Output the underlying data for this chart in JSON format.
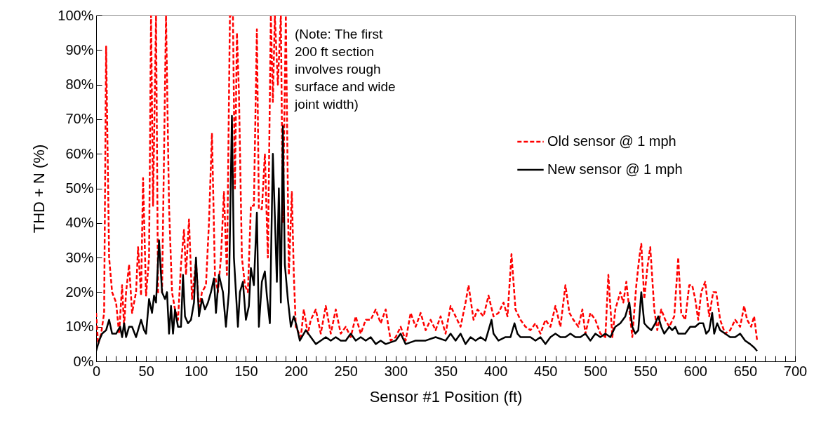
{
  "chart_data": {
    "type": "line",
    "xlabel": "Sensor #1 Position (ft)",
    "ylabel": "THD + N (%)",
    "xlim": [
      0,
      700
    ],
    "ylim": [
      0,
      100
    ],
    "xticks": [
      0,
      {
        "value": 10,
        "label": null
      },
      {
        "value": 20,
        "label": null
      },
      {
        "value": 30,
        "label": null
      },
      {
        "value": 40,
        "label": null
      },
      50,
      {
        "value": 60,
        "label": null
      },
      {
        "value": 70,
        "label": null
      },
      {
        "value": 80,
        "label": null
      },
      {
        "value": 90,
        "label": null
      },
      100,
      {
        "value": 110,
        "label": null
      },
      {
        "value": 120,
        "label": null
      },
      {
        "value": 130,
        "label": null
      },
      {
        "value": 140,
        "label": null
      },
      150,
      {
        "value": 160,
        "label": null
      },
      {
        "value": 170,
        "label": null
      },
      {
        "value": 180,
        "label": null
      },
      {
        "value": 190,
        "label": null
      },
      200,
      {
        "value": 210,
        "label": null
      },
      {
        "value": 220,
        "label": null
      },
      {
        "value": 230,
        "label": null
      },
      {
        "value": 240,
        "label": null
      },
      250,
      {
        "value": 260,
        "label": null
      },
      {
        "value": 270,
        "label": null
      },
      {
        "value": 280,
        "label": null
      },
      {
        "value": 290,
        "label": null
      },
      300,
      {
        "value": 310,
        "label": null
      },
      {
        "value": 320,
        "label": null
      },
      {
        "value": 330,
        "label": null
      },
      {
        "value": 340,
        "label": null
      },
      350,
      {
        "value": 360,
        "label": null
      },
      {
        "value": 370,
        "label": null
      },
      {
        "value": 380,
        "label": null
      },
      {
        "value": 390,
        "label": null
      },
      400,
      {
        "value": 410,
        "label": null
      },
      {
        "value": 420,
        "label": null
      },
      {
        "value": 430,
        "label": null
      },
      {
        "value": 440,
        "label": null
      },
      450,
      {
        "value": 460,
        "label": null
      },
      {
        "value": 470,
        "label": null
      },
      {
        "value": 480,
        "label": null
      },
      {
        "value": 490,
        "label": null
      },
      500,
      {
        "value": 510,
        "label": null
      },
      {
        "value": 520,
        "label": null
      },
      {
        "value": 530,
        "label": null
      },
      {
        "value": 540,
        "label": null
      },
      550,
      {
        "value": 560,
        "label": null
      },
      {
        "value": 570,
        "label": null
      },
      {
        "value": 580,
        "label": null
      },
      {
        "value": 590,
        "label": null
      },
      600,
      {
        "value": 610,
        "label": null
      },
      {
        "value": 620,
        "label": null
      },
      {
        "value": 630,
        "label": null
      },
      {
        "value": 640,
        "label": null
      },
      650,
      {
        "value": 660,
        "label": null
      },
      {
        "value": 670,
        "label": null
      },
      {
        "value": 680,
        "label": null
      },
      {
        "value": 690,
        "label": null
      },
      700
    ],
    "yticks": [
      {
        "value": 0,
        "label": "0%"
      },
      {
        "value": 10,
        "label": "10%"
      },
      {
        "value": 20,
        "label": "20%"
      },
      {
        "value": 30,
        "label": "30%"
      },
      {
        "value": 40,
        "label": "40%"
      },
      {
        "value": 50,
        "label": "50%"
      },
      {
        "value": 60,
        "label": "60%"
      },
      {
        "value": 70,
        "label": "70%"
      },
      {
        "value": 80,
        "label": "80%"
      },
      {
        "value": 90,
        "label": "90%"
      },
      {
        "value": 100,
        "label": "100%"
      }
    ],
    "grid": false,
    "legend": "top right",
    "annotations": [
      "(Note: The first 200 ft section involves rough surface and wide joint width)"
    ],
    "series": [
      {
        "name": "Old sensor @ 1 mph",
        "color": "#ff0000",
        "line_style": "dashed",
        "x": [
          0,
          2,
          5,
          8,
          10,
          13,
          16,
          20,
          23,
          26,
          28,
          30,
          33,
          36,
          40,
          42,
          45,
          47,
          50,
          53,
          55,
          57,
          60,
          62,
          66,
          70,
          73,
          76,
          79,
          82,
          85,
          88,
          90,
          93,
          96,
          100,
          103,
          106,
          110,
          113,
          116,
          119,
          122,
          125,
          128,
          131,
          134,
          137,
          139,
          141,
          143,
          146,
          149,
          152,
          155,
          158,
          161,
          163,
          166,
          169,
          172,
          175,
          177,
          179,
          182,
          185,
          187,
          190,
          193,
          196,
          198,
          200,
          205,
          208,
          212,
          215,
          220,
          225,
          230,
          235,
          240,
          245,
          250,
          255,
          260,
          265,
          270,
          275,
          280,
          285,
          290,
          295,
          300,
          305,
          310,
          315,
          320,
          325,
          330,
          335,
          340,
          345,
          350,
          355,
          360,
          365,
          370,
          373,
          378,
          382,
          388,
          393,
          398,
          403,
          408,
          412,
          416,
          420,
          425,
          430,
          435,
          440,
          445,
          450,
          455,
          460,
          465,
          470,
          474,
          478,
          483,
          487,
          490,
          495,
          500,
          505,
          510,
          513,
          517,
          520,
          525,
          528,
          531,
          534,
          537,
          541,
          544,
          546,
          549,
          552,
          555,
          559,
          562,
          566,
          570,
          574,
          579,
          583,
          586,
          590,
          594,
          597,
          600,
          603,
          606,
          610,
          614,
          618,
          621,
          625,
          630,
          635,
          640,
          645,
          649,
          652,
          656,
          659,
          662
        ],
        "values": [
          14,
          5,
          8,
          14,
          91,
          30,
          20,
          17,
          8,
          22,
          10,
          20,
          28,
          14,
          20,
          33,
          19,
          53,
          19,
          30,
          100,
          45,
          100,
          20,
          20,
          100,
          45,
          20,
          15,
          12,
          28,
          38,
          25,
          41,
          18,
          29,
          15,
          20,
          22,
          40,
          66,
          25,
          20,
          30,
          49,
          25,
          100,
          100,
          50,
          95,
          78,
          30,
          22,
          20,
          45,
          45,
          96,
          44,
          44,
          60,
          30,
          100,
          75,
          100,
          80,
          100,
          40,
          100,
          25,
          49,
          25,
          10,
          7,
          15,
          8,
          12,
          15,
          8,
          16,
          8,
          15,
          8,
          10,
          7,
          13,
          8,
          12,
          12,
          15,
          11,
          15,
          6,
          7,
          10,
          6,
          14,
          10,
          14,
          9,
          12,
          9,
          13,
          8,
          16,
          13,
          10,
          17,
          22,
          12,
          15,
          13,
          19,
          13,
          14,
          17,
          13,
          31,
          15,
          12,
          10,
          9,
          11,
          8,
          12,
          10,
          16,
          10,
          22,
          14,
          12,
          10,
          15,
          8,
          14,
          12,
          8,
          7,
          25,
          7,
          15,
          20,
          17,
          23,
          15,
          7,
          22,
          30,
          34,
          18,
          27,
          33,
          15,
          9,
          15,
          12,
          10,
          13,
          30,
          14,
          12,
          22,
          22,
          18,
          12,
          20,
          23,
          13,
          20,
          20,
          12,
          8,
          9,
          12,
          10,
          16,
          12,
          10,
          13,
          6
        ]
      },
      {
        "name": "New sensor @ 1 mph",
        "color": "#000000",
        "line_style": "solid",
        "x": [
          0,
          3,
          6,
          10,
          13,
          16,
          20,
          24,
          26,
          28,
          30,
          33,
          36,
          40,
          43,
          45,
          48,
          50,
          53,
          56,
          58,
          60,
          63,
          66,
          69,
          71,
          73,
          75,
          77,
          79,
          82,
          85,
          87,
          89,
          92,
          95,
          98,
          100,
          103,
          106,
          109,
          112,
          115,
          118,
          120,
          123,
          127,
          130,
          133,
          136,
          138,
          140,
          142,
          144,
          147,
          150,
          153,
          155,
          158,
          161,
          163,
          166,
          169,
          171,
          174,
          177,
          179,
          181,
          183,
          185,
          187,
          189,
          192,
          195,
          198,
          201,
          204,
          210,
          215,
          220,
          225,
          230,
          235,
          240,
          245,
          250,
          255,
          260,
          265,
          270,
          275,
          280,
          285,
          290,
          300,
          305,
          310,
          320,
          330,
          340,
          350,
          355,
          360,
          365,
          370,
          375,
          380,
          385,
          390,
          393,
          396,
          398,
          403,
          410,
          415,
          419,
          422,
          425,
          430,
          435,
          440,
          445,
          450,
          455,
          460,
          465,
          470,
          475,
          480,
          485,
          490,
          495,
          500,
          505,
          510,
          515,
          520,
          525,
          530,
          534,
          537,
          540,
          543,
          546,
          549,
          552,
          556,
          560,
          563,
          566,
          569,
          574,
          577,
          580,
          583,
          586,
          590,
          595,
          600,
          604,
          608,
          611,
          614,
          617,
          619,
          622,
          625,
          630,
          635,
          640,
          645,
          650,
          655,
          659,
          662
        ],
        "values": [
          3,
          6,
          8,
          9,
          12,
          8,
          8,
          10,
          7,
          11,
          7,
          10,
          10,
          7,
          10,
          12,
          9,
          8,
          18,
          14,
          19,
          17,
          35,
          20,
          18,
          20,
          8,
          16,
          8,
          15,
          10,
          10,
          25,
          13,
          11,
          12,
          17,
          30,
          13,
          18,
          15,
          17,
          20,
          24,
          14,
          25,
          20,
          10,
          20,
          71,
          30,
          20,
          10,
          20,
          23,
          12,
          16,
          27,
          22,
          43,
          10,
          23,
          26,
          19,
          11,
          60,
          42,
          23,
          50,
          17,
          68,
          28,
          18,
          10,
          13,
          10,
          6,
          9,
          7,
          5,
          6,
          7,
          6,
          7,
          6,
          6,
          8,
          6,
          7,
          6,
          7,
          5,
          6,
          5,
          6,
          8,
          5,
          6,
          6,
          7,
          6,
          8,
          6,
          8,
          5,
          7,
          6,
          7,
          6,
          9,
          12,
          8,
          6,
          7,
          7,
          11,
          8,
          7,
          7,
          7,
          6,
          7,
          5,
          7,
          8,
          7,
          7,
          8,
          7,
          7,
          8,
          6,
          8,
          7,
          8,
          7,
          10,
          11,
          13,
          17,
          10,
          8,
          9,
          20,
          11,
          10,
          9,
          11,
          13,
          10,
          8,
          10,
          9,
          10,
          8,
          8,
          8,
          10,
          10,
          11,
          11,
          8,
          9,
          14,
          8,
          11,
          9,
          8,
          7,
          7,
          8,
          6,
          5,
          4,
          3
        ]
      }
    ]
  }
}
